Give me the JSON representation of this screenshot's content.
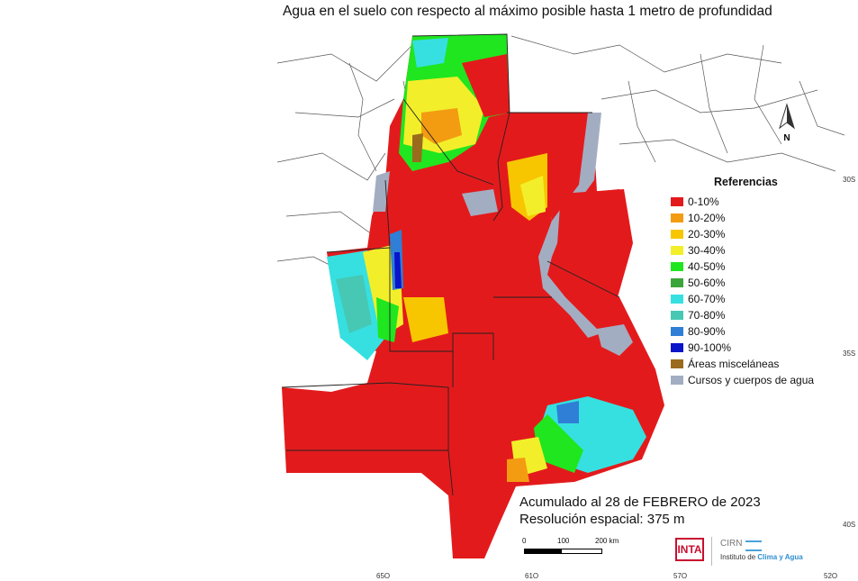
{
  "title": "Agua en el suelo con respecto al máximo posible hasta 1 metro de profundidad",
  "legend": {
    "title": "Referencias",
    "items": [
      {
        "label": "0-10%",
        "color": "#e31a1c"
      },
      {
        "label": "10-20%",
        "color": "#f39c12"
      },
      {
        "label": "20-30%",
        "color": "#f7c600"
      },
      {
        "label": "30-40%",
        "color": "#f2ef2a"
      },
      {
        "label": "40-50%",
        "color": "#1fe61f"
      },
      {
        "label": "50-60%",
        "color": "#3aa53a"
      },
      {
        "label": "60-70%",
        "color": "#36e0e0"
      },
      {
        "label": "70-80%",
        "color": "#46c8b4"
      },
      {
        "label": "80-90%",
        "color": "#2f7fd6"
      },
      {
        "label": "90-100%",
        "color": "#0a14c8"
      },
      {
        "label": "Áreas misceláneas",
        "color": "#9a6b1c"
      },
      {
        "label": "Cursos y cuerpos de agua",
        "color": "#a3adc2"
      }
    ]
  },
  "info": {
    "line1": "Acumulado al 28 de FEBRERO de 2023",
    "line2": "Resolución espacial: 375 m"
  },
  "scale": {
    "l0": "0",
    "l1": "100",
    "l2": "200 km"
  },
  "north": "N",
  "logos": {
    "inta": "INTA",
    "cirn": "CIRN",
    "inst_a": "Instituto de ",
    "inst_b": "Clima y Agua"
  },
  "axes": {
    "lat": [
      "30S",
      "35S",
      "40S"
    ],
    "lon": [
      "65O",
      "61O",
      "57O",
      "52O"
    ]
  }
}
